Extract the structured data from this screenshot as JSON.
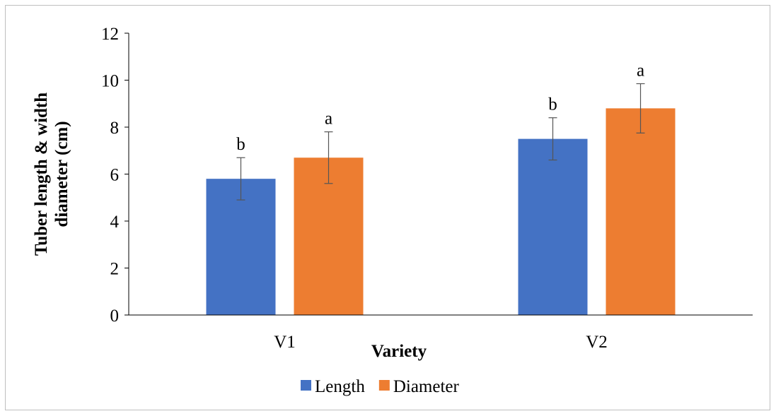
{
  "chart_data": {
    "type": "bar",
    "title": "",
    "xlabel": "Variety",
    "ylabel_lines": [
      "Tuber length & width",
      "diameter (cm)"
    ],
    "categories": [
      "V1",
      "V2"
    ],
    "ylim": [
      0,
      12
    ],
    "yticks": [
      0,
      2,
      4,
      6,
      8,
      10,
      12
    ],
    "grid": false,
    "legend_position": "bottom",
    "series": [
      {
        "name": "Length",
        "color": "#4472c4",
        "values": [
          5.8,
          7.5
        ],
        "errors": [
          0.9,
          0.9
        ],
        "labels": [
          "b",
          "b"
        ]
      },
      {
        "name": "Diameter",
        "color": "#ed7d31",
        "values": [
          6.7,
          8.8
        ],
        "errors": [
          1.1,
          1.05
        ],
        "labels": [
          "a",
          "a"
        ]
      }
    ]
  }
}
